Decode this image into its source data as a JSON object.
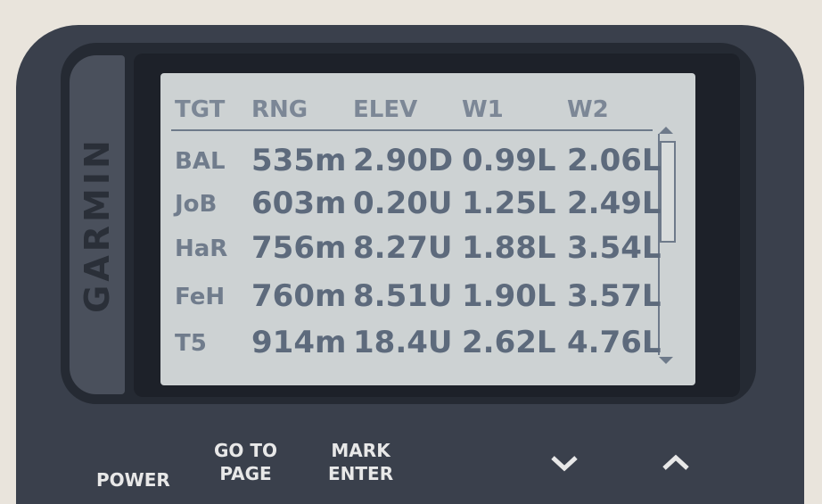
{
  "device": {
    "brand": "GARMIN"
  },
  "table": {
    "headers": [
      "TGT",
      "RNG",
      "ELEV",
      "W1",
      "W2"
    ],
    "rows": [
      [
        "BAL",
        "535m",
        "2.90D",
        "0.99L",
        "2.06L"
      ],
      [
        "JoB",
        "603m",
        "0.20U",
        "1.25L",
        "2.49L"
      ],
      [
        "HaR",
        "756m",
        "8.27U",
        "1.88L",
        "3.54L"
      ],
      [
        "FeH",
        "760m",
        "8.51U",
        "1.90L",
        "3.57L"
      ],
      [
        "T5",
        "914m",
        "18.4U",
        "2.62L",
        "4.76L"
      ]
    ]
  },
  "buttons": [
    {
      "lines": [
        "POWER"
      ]
    },
    {
      "lines": [
        "GO TO",
        "PAGE"
      ]
    },
    {
      "lines": [
        "MARK",
        "ENTER"
      ]
    }
  ]
}
